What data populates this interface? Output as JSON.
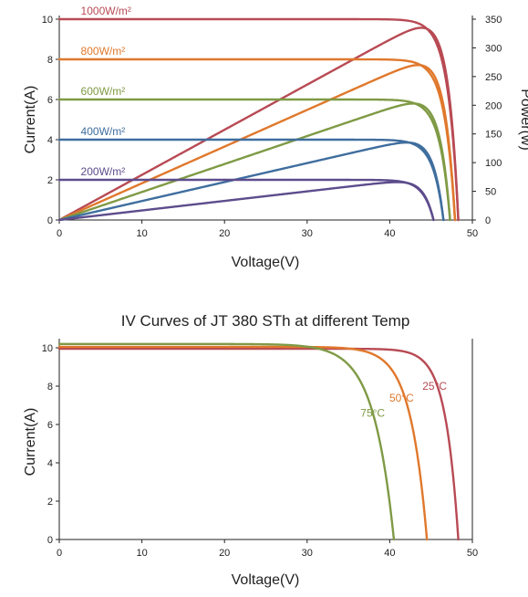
{
  "colors": {
    "red": "#b84a54",
    "orange": "#e0782c",
    "green": "#7f9a45",
    "blue": "#3f6e9e",
    "purple": "#5d4c8c",
    "axis": "#222222"
  },
  "chart_data": [
    {
      "type": "line",
      "title": "",
      "xlabel": "Voltage(V)",
      "ylabel": "Current(A)",
      "y2label": "Power(w)",
      "xlim": [
        0,
        50
      ],
      "ylim": [
        0,
        10
      ],
      "y2lim": [
        0,
        350
      ],
      "xticks": [
        0,
        10,
        20,
        30,
        40,
        50
      ],
      "yticks": [
        0,
        2,
        4,
        6,
        8,
        10
      ],
      "y2ticks": [
        0,
        50,
        100,
        150,
        200,
        250,
        300,
        350
      ],
      "grid": false,
      "series": [
        {
          "name": "1000W/m²",
          "color": "#b84a54",
          "isc": 10.0,
          "voc": 48.3,
          "pmax": 335,
          "vmp": 40.5
        },
        {
          "name": "800W/m²",
          "color": "#e0782c",
          "isc": 8.0,
          "voc": 47.9,
          "pmax": 270,
          "vmp": 40.0
        },
        {
          "name": "600W/m²",
          "color": "#7f9a45",
          "isc": 6.0,
          "voc": 47.3,
          "pmax": 203,
          "vmp": 39.5
        },
        {
          "name": "400W/m²",
          "color": "#3f6e9e",
          "isc": 4.0,
          "voc": 46.5,
          "pmax": 135,
          "vmp": 39.0
        },
        {
          "name": "200W/m²",
          "color": "#5d4c8c",
          "isc": 2.0,
          "voc": 45.3,
          "pmax": 66,
          "vmp": 38.5
        }
      ]
    },
    {
      "type": "line",
      "title": "IV Curves of JT 380 STh at different Temp",
      "xlabel": "Voltage(V)",
      "ylabel": "Current(A)",
      "xlim": [
        0,
        50
      ],
      "ylim": [
        0,
        10.5
      ],
      "xticks": [
        0,
        10,
        20,
        30,
        40,
        50
      ],
      "yticks": [
        0,
        2,
        4,
        6,
        8,
        10
      ],
      "grid": false,
      "series": [
        {
          "name": "25°C",
          "color": "#b84a54",
          "isc": 9.95,
          "voc": 48.3
        },
        {
          "name": "50°C",
          "color": "#e0782c",
          "isc": 10.05,
          "voc": 44.5
        },
        {
          "name": "75°C",
          "color": "#7f9a45",
          "isc": 10.2,
          "voc": 40.5
        }
      ]
    }
  ]
}
